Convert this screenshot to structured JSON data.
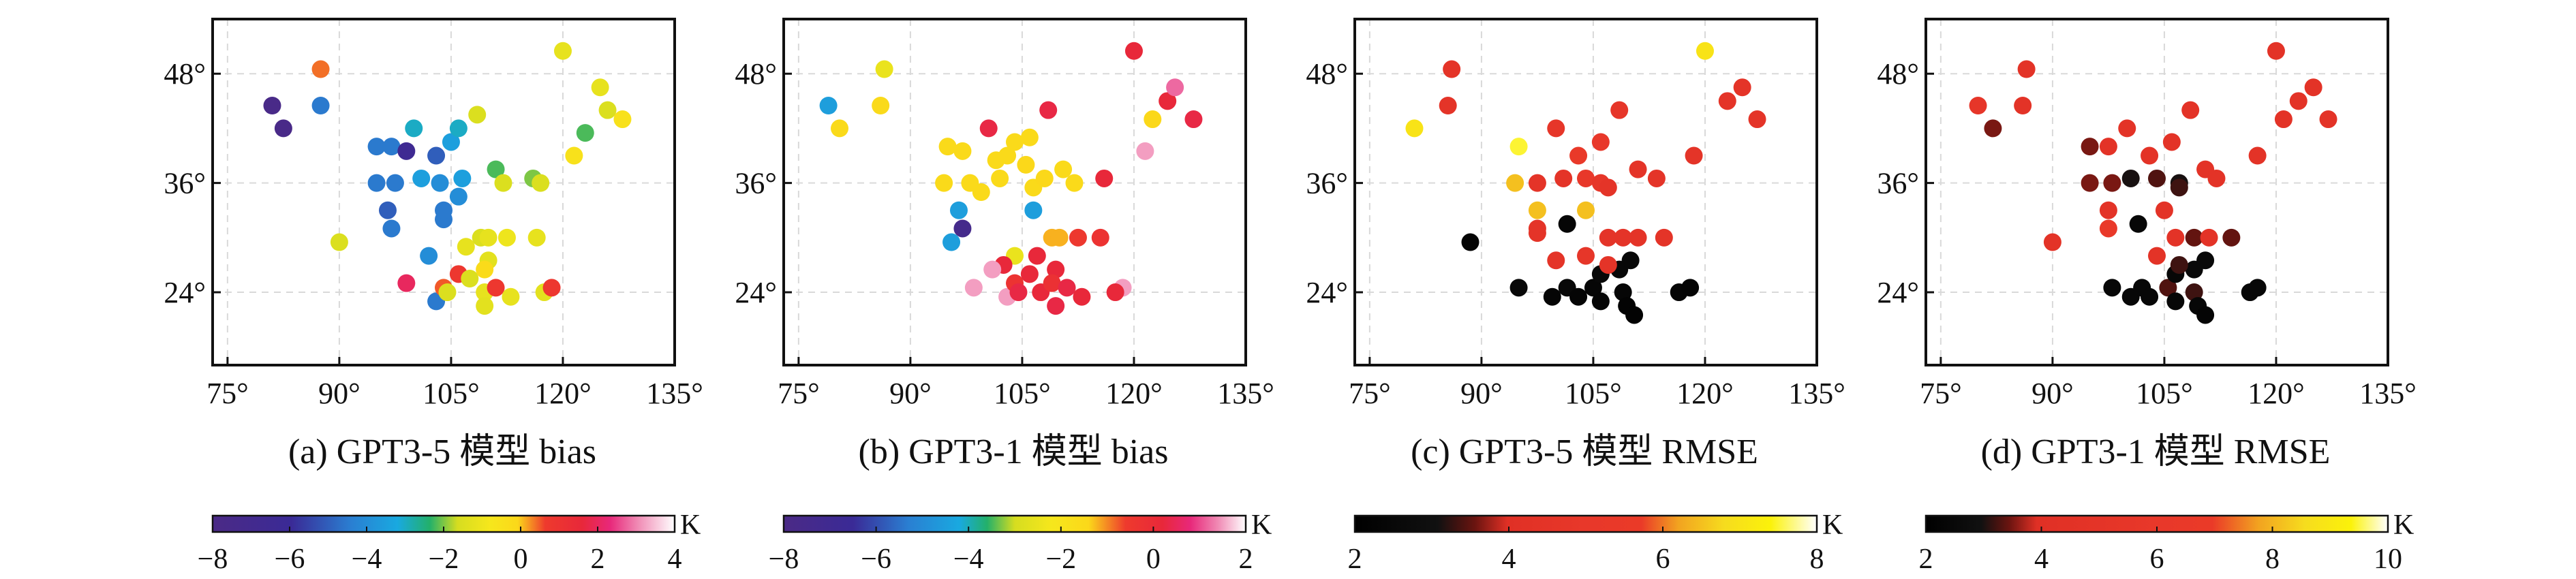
{
  "chart_data": [
    {
      "type": "scatter",
      "caption": "(a) GPT3-5 模型 bias",
      "x_ticks": [
        75,
        90,
        105,
        120,
        135
      ],
      "x_tick_labels": [
        "75°",
        "90°",
        "105°",
        "120°",
        "135°"
      ],
      "y_ticks": [
        24,
        36,
        48
      ],
      "y_tick_labels": [
        "24°",
        "36°",
        "48°"
      ],
      "xlim": [
        73,
        135
      ],
      "ylim": [
        16,
        54
      ],
      "grid": true,
      "colorbar": {
        "range": [
          -8,
          4
        ],
        "ticks": [
          -8,
          -6,
          -4,
          -2,
          0,
          2,
          4
        ],
        "tick_labels": [
          "−8",
          "−6",
          "−4",
          "−2",
          "0",
          "2",
          "4"
        ],
        "unit": "K",
        "stops": [
          [
            0,
            "#4b2a86"
          ],
          [
            0.17,
            "#3a2a96"
          ],
          [
            0.3,
            "#2a7fd2"
          ],
          [
            0.4,
            "#19a9e0"
          ],
          [
            0.47,
            "#23b06a"
          ],
          [
            0.53,
            "#d6dd20"
          ],
          [
            0.6,
            "#f6e71c"
          ],
          [
            0.66,
            "#fbd81a"
          ],
          [
            0.72,
            "#ee3a2d"
          ],
          [
            0.8,
            "#e8283a"
          ],
          [
            0.86,
            "#e8287a"
          ],
          [
            0.92,
            "#f08ab4"
          ],
          [
            1,
            "#ffffff"
          ]
        ]
      },
      "points": [
        [
          81,
          44.5,
          -7.8
        ],
        [
          82.5,
          42,
          -7.8
        ],
        [
          87.5,
          48.5,
          0.4
        ],
        [
          87.5,
          44.5,
          -4.5
        ],
        [
          90,
          29.5,
          -1.5
        ],
        [
          95,
          40,
          -4.5
        ],
        [
          95,
          36,
          -4.5
        ],
        [
          97,
          40,
          -4.5
        ],
        [
          97.5,
          36,
          -4.5
        ],
        [
          96.5,
          33,
          -5
        ],
        [
          97,
          31,
          -4.5
        ],
        [
          99,
          39.5,
          -6.5
        ],
        [
          101,
          36.5,
          -3.5
        ],
        [
          100,
          42,
          -3
        ],
        [
          103,
          39,
          -5
        ],
        [
          103.5,
          36,
          -4
        ],
        [
          105,
          40.5,
          -3.5
        ],
        [
          106,
          42,
          -3
        ],
        [
          104,
          32,
          -4.5
        ],
        [
          106,
          34.5,
          -4
        ],
        [
          106.5,
          36.5,
          -3.5
        ],
        [
          108.5,
          43.5,
          -1.5
        ],
        [
          111,
          37.5,
          -2.2
        ],
        [
          112,
          36,
          -1.5
        ],
        [
          107,
          29,
          -1.2
        ],
        [
          109,
          30,
          -1.5
        ],
        [
          110,
          30,
          -1.2
        ],
        [
          112.5,
          30,
          -1
        ],
        [
          116.5,
          30,
          -1.2
        ],
        [
          116,
          36.5,
          -2
        ],
        [
          117,
          36,
          -1.5
        ],
        [
          120,
          50.5,
          -1.2
        ],
        [
          121.5,
          39,
          -0.5
        ],
        [
          123,
          41.5,
          -2.2
        ],
        [
          125,
          46.5,
          -1.2
        ],
        [
          126,
          44,
          -1.5
        ],
        [
          128,
          43,
          -0.5
        ],
        [
          99,
          25,
          2
        ],
        [
          103,
          23,
          -4.5
        ],
        [
          104,
          24.5,
          0.5
        ],
        [
          104.5,
          24,
          -1.5
        ],
        [
          106,
          26,
          0.8
        ],
        [
          107.5,
          25.5,
          -1.5
        ],
        [
          110,
          27.5,
          -1.3
        ],
        [
          109.5,
          26.5,
          -0.2
        ],
        [
          109.5,
          24,
          -1.2
        ],
        [
          109.5,
          22.5,
          -1.3
        ],
        [
          111,
          24.5,
          0.8
        ],
        [
          113,
          23.5,
          -1.2
        ],
        [
          117.5,
          24,
          -1.3
        ],
        [
          118.5,
          24.5,
          0.8
        ],
        [
          104,
          33,
          -4.5
        ],
        [
          102,
          28,
          -4
        ]
      ]
    },
    {
      "type": "scatter",
      "caption": "(b) GPT3-1 模型 bias",
      "x_ticks": [
        75,
        90,
        105,
        120,
        135
      ],
      "x_tick_labels": [
        "75°",
        "90°",
        "105°",
        "120°",
        "135°"
      ],
      "y_ticks": [
        24,
        36,
        48
      ],
      "y_tick_labels": [
        "24°",
        "36°",
        "48°"
      ],
      "xlim": [
        73,
        135
      ],
      "ylim": [
        16,
        54
      ],
      "grid": true,
      "colorbar": {
        "range": [
          -8,
          2
        ],
        "ticks": [
          -8,
          -6,
          -4,
          -2,
          0,
          2
        ],
        "tick_labels": [
          "−8",
          "−6",
          "−4",
          "−2",
          "0",
          "2"
        ],
        "unit": "K",
        "stops": [
          [
            0,
            "#4b2a86"
          ],
          [
            0.15,
            "#3a2a96"
          ],
          [
            0.27,
            "#2a7fd2"
          ],
          [
            0.38,
            "#19a9e0"
          ],
          [
            0.44,
            "#23b06a"
          ],
          [
            0.5,
            "#d6dd20"
          ],
          [
            0.58,
            "#f6e71c"
          ],
          [
            0.66,
            "#fbd81a"
          ],
          [
            0.74,
            "#ee3a2d"
          ],
          [
            0.82,
            "#e8283a"
          ],
          [
            0.88,
            "#e8287a"
          ],
          [
            0.94,
            "#f08ab4"
          ],
          [
            1,
            "#ffffff"
          ]
        ]
      },
      "points": [
        [
          79,
          44.5,
          -4.5
        ],
        [
          80.5,
          42,
          -1.5
        ],
        [
          86.5,
          48.5,
          -2.5
        ],
        [
          86,
          44.5,
          -1.5
        ],
        [
          95.5,
          29.5,
          -4.5
        ],
        [
          95,
          40,
          -1.5
        ],
        [
          94.5,
          36,
          -1.5
        ],
        [
          97,
          39.5,
          -1.5
        ],
        [
          98,
          36,
          -1.5
        ],
        [
          96.5,
          33,
          -4.5
        ],
        [
          97,
          31,
          -7.5
        ],
        [
          99.5,
          35,
          -1.5
        ],
        [
          101.5,
          38.5,
          -1.5
        ],
        [
          100.5,
          42,
          0.3
        ],
        [
          103,
          39,
          -1.5
        ],
        [
          102,
          36.5,
          -1.5
        ],
        [
          104,
          40.5,
          -1.5
        ],
        [
          106,
          41,
          -1.5
        ],
        [
          105.5,
          38,
          -1.4
        ],
        [
          106.5,
          35.5,
          -1.5
        ],
        [
          108,
          36.5,
          -1.4
        ],
        [
          108.5,
          44,
          0.3
        ],
        [
          110.5,
          37.5,
          -1.5
        ],
        [
          112,
          36,
          -1.5
        ],
        [
          106.5,
          33,
          -4.5
        ],
        [
          109,
          30,
          -1.2
        ],
        [
          110,
          30,
          -1.2
        ],
        [
          112.5,
          30,
          -0.5
        ],
        [
          115.5,
          30,
          -0.3
        ],
        [
          116,
          36.5,
          0.2
        ],
        [
          118.5,
          24.5,
          1.5
        ],
        [
          120,
          50.5,
          0.2
        ],
        [
          121.5,
          39.5,
          1.5
        ],
        [
          122.5,
          43,
          -1.4
        ],
        [
          124.5,
          45,
          0.2
        ],
        [
          125.5,
          46.5,
          1.2
        ],
        [
          128,
          43,
          0.3
        ],
        [
          98.5,
          24.5,
          1.5
        ],
        [
          104,
          28,
          -2.5
        ],
        [
          103,
          23.5,
          1.5
        ],
        [
          104,
          25,
          -0.3
        ],
        [
          104.5,
          24,
          0.3
        ],
        [
          106,
          26,
          0.2
        ],
        [
          107.5,
          24,
          0.2
        ],
        [
          109.5,
          26.5,
          0.2
        ],
        [
          109,
          25,
          -0.2
        ],
        [
          109.5,
          22.5,
          0.3
        ],
        [
          111,
          24.5,
          0.3
        ],
        [
          113,
          23.5,
          0.2
        ],
        [
          117.5,
          24,
          0.2
        ],
        [
          102.5,
          27,
          0.2
        ],
        [
          107,
          28,
          0.2
        ],
        [
          101,
          26.5,
          1.5
        ]
      ]
    },
    {
      "type": "scatter",
      "caption": "(c) GPT3-5 模型 RMSE",
      "x_ticks": [
        75,
        90,
        105,
        120,
        135
      ],
      "x_tick_labels": [
        "75°",
        "90°",
        "105°",
        "120°",
        "135°"
      ],
      "y_ticks": [
        24,
        36,
        48
      ],
      "y_tick_labels": [
        "24°",
        "36°",
        "48°"
      ],
      "xlim": [
        73,
        135
      ],
      "ylim": [
        16,
        54
      ],
      "grid": true,
      "colorbar": {
        "range": [
          2,
          8
        ],
        "ticks": [
          2,
          4,
          6,
          8
        ],
        "tick_labels": [
          "2",
          "4",
          "6",
          "8"
        ],
        "unit": "K",
        "stops": [
          [
            0,
            "#000000"
          ],
          [
            0.18,
            "#111111"
          ],
          [
            0.26,
            "#6a1410"
          ],
          [
            0.33,
            "#e03025"
          ],
          [
            0.5,
            "#e8382a"
          ],
          [
            0.62,
            "#ea3a28"
          ],
          [
            0.7,
            "#f2a320"
          ],
          [
            0.8,
            "#f6dc1e"
          ],
          [
            0.9,
            "#fbf20a"
          ],
          [
            1,
            "#ffffff"
          ]
        ]
      },
      "points": [
        [
          86,
          48.5,
          4.5
        ],
        [
          85.5,
          44.5,
          4.5
        ],
        [
          81,
          42,
          7
        ],
        [
          88.5,
          29.5,
          2.3
        ],
        [
          95,
          40,
          7.5
        ],
        [
          94.5,
          36,
          6.5
        ],
        [
          97.5,
          36,
          4.5
        ],
        [
          97.5,
          33,
          6.5
        ],
        [
          97.5,
          31,
          4.5
        ],
        [
          101,
          36.5,
          4.5
        ],
        [
          100,
          42,
          4.8
        ],
        [
          103,
          39,
          5.5
        ],
        [
          104,
          36.5,
          5
        ],
        [
          106,
          40.5,
          5
        ],
        [
          106,
          36,
          4.7
        ],
        [
          104,
          33,
          6.5
        ],
        [
          107,
          35.5,
          4.5
        ],
        [
          108.5,
          44,
          4.8
        ],
        [
          111,
          37.5,
          4.5
        ],
        [
          113.5,
          36.5,
          4.5
        ],
        [
          107,
          30,
          4.5
        ],
        [
          109,
          30,
          4.5
        ],
        [
          111,
          30,
          4.5
        ],
        [
          114.5,
          30,
          4.5
        ],
        [
          118.5,
          39,
          4.5
        ],
        [
          120,
          50.5,
          7
        ],
        [
          123,
          45,
          4.5
        ],
        [
          125,
          46.5,
          4.5
        ],
        [
          127,
          43,
          4.5
        ],
        [
          97.5,
          30.5,
          4.5
        ],
        [
          95,
          24.5,
          2.5
        ],
        [
          99.5,
          23.5,
          2.3
        ],
        [
          101.5,
          24.5,
          2.5
        ],
        [
          103,
          23.5,
          2.3
        ],
        [
          104,
          28,
          4.8
        ],
        [
          105,
          24.5,
          2.4
        ],
        [
          106,
          26,
          2.5
        ],
        [
          106,
          23,
          2.3
        ],
        [
          108.5,
          26.5,
          2.5
        ],
        [
          109,
          24,
          2.4
        ],
        [
          109.5,
          22.5,
          2.2
        ],
        [
          110,
          27.5,
          2.5
        ],
        [
          110.5,
          21.5,
          2.2
        ],
        [
          116.5,
          24,
          2.4
        ],
        [
          118,
          24.5,
          2.3
        ],
        [
          100,
          27.5,
          4.5
        ],
        [
          101.5,
          31.5,
          2.4
        ],
        [
          107,
          27,
          4.5
        ]
      ]
    },
    {
      "type": "scatter",
      "caption": "(d) GPT3-1 模型 RMSE",
      "x_ticks": [
        75,
        90,
        105,
        120,
        135
      ],
      "x_tick_labels": [
        "75°",
        "90°",
        "105°",
        "120°",
        "135°"
      ],
      "y_ticks": [
        24,
        36,
        48
      ],
      "y_tick_labels": [
        "24°",
        "36°",
        "48°"
      ],
      "xlim": [
        73,
        135
      ],
      "ylim": [
        16,
        54
      ],
      "grid": true,
      "colorbar": {
        "range": [
          2,
          10
        ],
        "ticks": [
          2,
          4,
          6,
          8,
          10
        ],
        "tick_labels": [
          "2",
          "4",
          "6",
          "8",
          "10"
        ],
        "unit": "K",
        "stops": [
          [
            0,
            "#000000"
          ],
          [
            0.12,
            "#111111"
          ],
          [
            0.18,
            "#6a1410"
          ],
          [
            0.24,
            "#e03025"
          ],
          [
            0.5,
            "#e8382a"
          ],
          [
            0.62,
            "#ea3a28"
          ],
          [
            0.72,
            "#f2a320"
          ],
          [
            0.82,
            "#f6dc1e"
          ],
          [
            0.92,
            "#fbf20a"
          ],
          [
            1,
            "#ffffff"
          ]
        ]
      },
      "points": [
        [
          80,
          44.5,
          5.5
        ],
        [
          82,
          42,
          3.5
        ],
        [
          86.5,
          48.5,
          4.8
        ],
        [
          86,
          44.5,
          4.8
        ],
        [
          90,
          29.5,
          4.6
        ],
        [
          95,
          40,
          3.5
        ],
        [
          95,
          36,
          3.5
        ],
        [
          97.5,
          40,
          4.8
        ],
        [
          98,
          36,
          3.5
        ],
        [
          97.5,
          33,
          4.7
        ],
        [
          97.5,
          31,
          6.5
        ],
        [
          100.5,
          36.5,
          3
        ],
        [
          100,
          42,
          4.7
        ],
        [
          103,
          39,
          4.8
        ],
        [
          104,
          36.5,
          3.3
        ],
        [
          106,
          40.5,
          4.8
        ],
        [
          107,
          36,
          3
        ],
        [
          105,
          33,
          4.8
        ],
        [
          107,
          35.5,
          3.2
        ],
        [
          108.5,
          44,
          4.8
        ],
        [
          110.5,
          37.5,
          4.7
        ],
        [
          112,
          36.5,
          4.7
        ],
        [
          106.5,
          30,
          4.6
        ],
        [
          109,
          30,
          3.4
        ],
        [
          111,
          30,
          4.7
        ],
        [
          114,
          30,
          3.4
        ],
        [
          117.5,
          39,
          4.7
        ],
        [
          120,
          50.5,
          4.6
        ],
        [
          121,
          43,
          4.7
        ],
        [
          123,
          45,
          4.7
        ],
        [
          125,
          46.5,
          4.7
        ],
        [
          127,
          43,
          4.7
        ],
        [
          98,
          24.5,
          2.4
        ],
        [
          100.5,
          23.5,
          2.4
        ],
        [
          102,
          24.5,
          2.4
        ],
        [
          103,
          23.5,
          2.4
        ],
        [
          104,
          28,
          4.7
        ],
        [
          105.5,
          24.5,
          3.3
        ],
        [
          106.5,
          26,
          2.4
        ],
        [
          106.5,
          23,
          2.4
        ],
        [
          109,
          26.5,
          2.5
        ],
        [
          109,
          24,
          3.2
        ],
        [
          109.5,
          22.5,
          2.4
        ],
        [
          110.5,
          27.5,
          2.5
        ],
        [
          110.5,
          21.5,
          2.3
        ],
        [
          116.5,
          24,
          2.4
        ],
        [
          117.5,
          24.5,
          2.4
        ],
        [
          101.5,
          31.5,
          2.4
        ],
        [
          107,
          27,
          3.2
        ]
      ]
    }
  ]
}
